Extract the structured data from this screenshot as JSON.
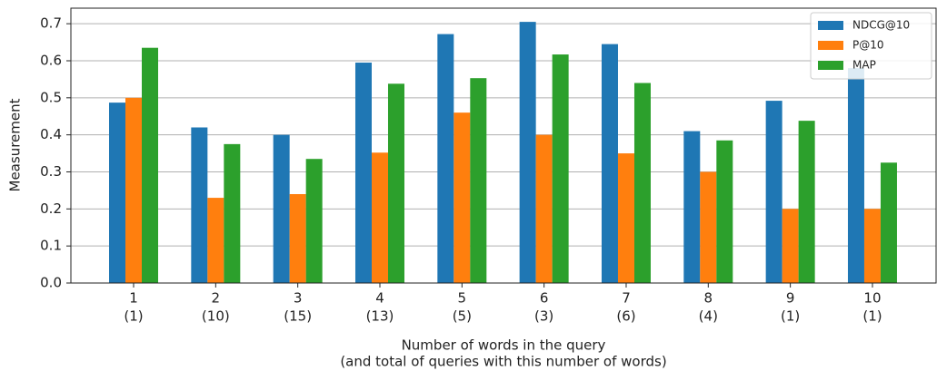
{
  "chart_data": {
    "type": "bar",
    "xlabel": [
      "Number of words in the query",
      "(and total of queries with this number of words)"
    ],
    "ylabel": "Measurement",
    "categories": [
      "1",
      "2",
      "3",
      "4",
      "5",
      "6",
      "7",
      "8",
      "9",
      "10"
    ],
    "category_sublabels": [
      "(1)",
      "(10)",
      "(15)",
      "(13)",
      "(5)",
      "(3)",
      "(6)",
      "(4)",
      "(1)",
      "(1)"
    ],
    "series": [
      {
        "name": "NDCG@10",
        "color": "#1f77b4",
        "values": [
          0.487,
          0.42,
          0.4,
          0.595,
          0.672,
          0.705,
          0.645,
          0.41,
          0.492,
          0.58
        ]
      },
      {
        "name": "P@10",
        "color": "#ff7f0e",
        "values": [
          0.5,
          0.23,
          0.24,
          0.352,
          0.46,
          0.4,
          0.35,
          0.3,
          0.2,
          0.2
        ]
      },
      {
        "name": "MAP",
        "color": "#2ca02c",
        "values": [
          0.635,
          0.375,
          0.335,
          0.538,
          0.553,
          0.617,
          0.54,
          0.385,
          0.438,
          0.325
        ]
      }
    ],
    "ylim": [
      0,
      0.742
    ],
    "yticks": [
      {
        "value": 0,
        "label": "0.0"
      },
      0.1,
      0.2,
      0.3,
      0.4,
      0.5,
      0.6,
      0.7
    ],
    "grid": true,
    "legend": "upper right"
  }
}
